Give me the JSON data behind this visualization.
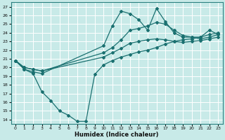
{
  "xlabel": "Humidex (Indice chaleur)",
  "bg_color": "#c8eae8",
  "grid_color": "#ffffff",
  "line_color": "#1a7070",
  "ylim": [
    13.5,
    27.5
  ],
  "xlim": [
    -0.5,
    23.5
  ],
  "yticks": [
    14,
    15,
    16,
    17,
    18,
    19,
    20,
    21,
    22,
    23,
    24,
    25,
    26,
    27
  ],
  "xticks": [
    0,
    1,
    2,
    3,
    4,
    5,
    6,
    7,
    8,
    9,
    10,
    11,
    12,
    13,
    14,
    15,
    16,
    17,
    18,
    19,
    20,
    21,
    22,
    23
  ],
  "line_dip_x": [
    0,
    1,
    2,
    3,
    4,
    5,
    6,
    7,
    8,
    9,
    10,
    11,
    12,
    13,
    14,
    15,
    16,
    17,
    18,
    19,
    20,
    21,
    22,
    23
  ],
  "line_dip_y": [
    20.8,
    19.8,
    19.3,
    17.2,
    16.2,
    15.0,
    14.5,
    13.8,
    13.8,
    19.2,
    20.3,
    20.8,
    21.2,
    21.5,
    21.8,
    22.0,
    22.3,
    22.7,
    23.0,
    23.2,
    23.3,
    23.5,
    23.8,
    24.0
  ],
  "line_low_x": [
    0,
    1,
    2,
    3,
    10,
    11,
    12,
    13,
    14,
    15,
    16,
    17,
    18,
    19,
    20,
    21,
    22,
    23
  ],
  "line_low_y": [
    20.8,
    20.0,
    19.8,
    19.6,
    21.2,
    21.7,
    22.2,
    22.8,
    23.0,
    23.2,
    23.3,
    23.2,
    23.0,
    22.9,
    23.0,
    23.1,
    23.3,
    23.5
  ],
  "line_mid_x": [
    0,
    1,
    2,
    3,
    10,
    11,
    12,
    13,
    14,
    15,
    16,
    17,
    18,
    19,
    20,
    21,
    22,
    23
  ],
  "line_mid_y": [
    20.8,
    20.0,
    19.8,
    19.6,
    21.7,
    22.3,
    23.2,
    24.3,
    24.5,
    24.8,
    25.2,
    25.0,
    24.3,
    23.7,
    23.5,
    23.3,
    23.5,
    23.8
  ],
  "line_peak_x": [
    0,
    1,
    2,
    3,
    10,
    11,
    12,
    13,
    14,
    15,
    16,
    17,
    18,
    19,
    20,
    21,
    22,
    23
  ],
  "line_peak_y": [
    20.8,
    19.8,
    19.5,
    19.3,
    22.5,
    24.8,
    26.5,
    26.2,
    25.5,
    24.3,
    26.8,
    25.3,
    24.0,
    23.5,
    23.5,
    23.5,
    24.3,
    23.8
  ]
}
